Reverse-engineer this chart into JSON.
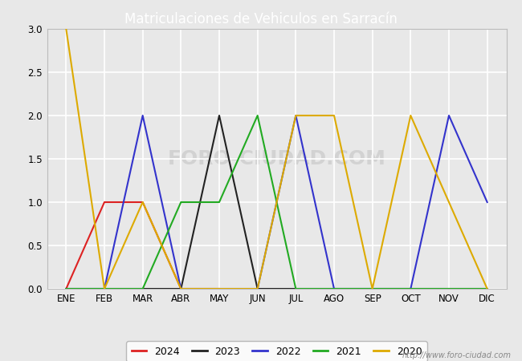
{
  "title": "Matriculaciones de Vehiculos en Sarracín",
  "months": [
    "ENE",
    "FEB",
    "MAR",
    "ABR",
    "MAY",
    "JUN",
    "JUL",
    "AGO",
    "SEP",
    "OCT",
    "NOV",
    "DIC"
  ],
  "series": {
    "2024": {
      "values": [
        0,
        1,
        1,
        0,
        0,
        null,
        null,
        null,
        null,
        null,
        null,
        null
      ],
      "color": "#dd2222",
      "linewidth": 1.5
    },
    "2023": {
      "values": [
        0,
        0,
        0,
        0,
        2,
        0,
        0,
        0,
        0,
        0,
        0,
        0
      ],
      "color": "#222222",
      "linewidth": 1.5
    },
    "2022": {
      "values": [
        0,
        0,
        2,
        0,
        0,
        0,
        2,
        0,
        0,
        0,
        2,
        1
      ],
      "color": "#3333cc",
      "linewidth": 1.5
    },
    "2021": {
      "values": [
        0,
        0,
        0,
        1,
        1,
        2,
        0,
        0,
        0,
        0,
        0,
        0
      ],
      "color": "#22aa22",
      "linewidth": 1.5
    },
    "2020": {
      "values": [
        3,
        0,
        1,
        0,
        0,
        0,
        2,
        2,
        0,
        2,
        1,
        0
      ],
      "color": "#ddaa00",
      "linewidth": 1.5
    }
  },
  "ylim": [
    0.0,
    3.0
  ],
  "yticks": [
    0.0,
    0.5,
    1.0,
    1.5,
    2.0,
    2.5,
    3.0
  ],
  "title_fontsize": 12,
  "tick_fontsize": 8.5,
  "legend_order": [
    "2024",
    "2023",
    "2022",
    "2021",
    "2020"
  ],
  "fig_background": "#e8e8e8",
  "header_color": "#5588cc",
  "plot_background": "#e8e8e8",
  "grid_color": "#ffffff",
  "grid_linewidth": 1.2,
  "watermark_plot": "FORO-CIUDAD.COM",
  "watermark_url": "http://www.foro-ciudad.com"
}
